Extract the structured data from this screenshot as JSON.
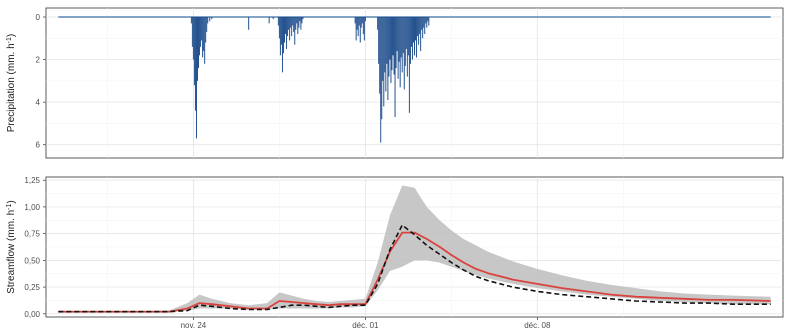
{
  "chart_data": [
    {
      "type": "bar",
      "ylabel": {
        "main": "Precipitation (mm. h",
        "sup": "-1",
        "tail": ")"
      },
      "y_reversed": true,
      "ylim": [
        0,
        6.2
      ],
      "yticks": [
        "0",
        "2",
        "4",
        "6"
      ],
      "x_start": "2023-11-18T00:00",
      "x_end": "2023-12-18T00:00",
      "xticks": [
        {
          "label": "nov. 24",
          "date": "2023-11-24"
        },
        {
          "label": "déc. 01",
          "date": "2023-12-01"
        },
        {
          "label": "déc. 08",
          "date": "2023-12-08"
        }
      ],
      "colors": {
        "bars": "#1f4e8c",
        "baseline": "#5b86b4"
      },
      "bars": [
        {
          "date": "2023-11-23T22:00",
          "value": 0.3
        },
        {
          "date": "2023-11-23T23:00",
          "value": 1.4
        },
        {
          "date": "2023-11-24T00:00",
          "value": 2.0
        },
        {
          "date": "2023-11-24T01:00",
          "value": 3.2
        },
        {
          "date": "2023-11-24T02:00",
          "value": 4.4
        },
        {
          "date": "2023-11-24T03:00",
          "value": 5.7
        },
        {
          "date": "2023-11-24T04:00",
          "value": 3.0
        },
        {
          "date": "2023-11-24T05:00",
          "value": 2.4
        },
        {
          "date": "2023-11-24T06:00",
          "value": 1.8
        },
        {
          "date": "2023-11-24T07:00",
          "value": 1.4
        },
        {
          "date": "2023-11-24T08:00",
          "value": 1.1
        },
        {
          "date": "2023-11-24T09:00",
          "value": 1.9
        },
        {
          "date": "2023-11-24T10:00",
          "value": 1.6
        },
        {
          "date": "2023-11-24T11:00",
          "value": 2.2
        },
        {
          "date": "2023-11-24T12:00",
          "value": 1.2
        },
        {
          "date": "2023-11-24T13:00",
          "value": 0.7
        },
        {
          "date": "2023-11-24T14:00",
          "value": 0.3
        },
        {
          "date": "2023-11-24T16:00",
          "value": 0.2
        },
        {
          "date": "2023-11-24T18:00",
          "value": 0.1
        },
        {
          "date": "2023-11-26T06:00",
          "value": 0.6
        },
        {
          "date": "2023-11-27T02:00",
          "value": 0.3
        },
        {
          "date": "2023-11-27T06:00",
          "value": 0.1
        },
        {
          "date": "2023-11-27T11:00",
          "value": 0.4
        },
        {
          "date": "2023-11-27T12:00",
          "value": 1.0
        },
        {
          "date": "2023-11-27T13:00",
          "value": 1.8
        },
        {
          "date": "2023-11-27T14:00",
          "value": 1.3
        },
        {
          "date": "2023-11-27T15:00",
          "value": 2.6
        },
        {
          "date": "2023-11-27T16:00",
          "value": 1.7
        },
        {
          "date": "2023-11-27T17:00",
          "value": 1.2
        },
        {
          "date": "2023-11-27T18:00",
          "value": 0.8
        },
        {
          "date": "2023-11-27T19:00",
          "value": 1.5
        },
        {
          "date": "2023-11-27T20:00",
          "value": 0.9
        },
        {
          "date": "2023-11-27T21:00",
          "value": 0.6
        },
        {
          "date": "2023-11-27T22:00",
          "value": 1.1
        },
        {
          "date": "2023-11-27T23:00",
          "value": 0.5
        },
        {
          "date": "2023-11-28T00:00",
          "value": 0.9
        },
        {
          "date": "2023-11-28T01:00",
          "value": 0.4
        },
        {
          "date": "2023-11-28T02:00",
          "value": 0.7
        },
        {
          "date": "2023-11-28T03:00",
          "value": 1.3
        },
        {
          "date": "2023-11-28T04:00",
          "value": 0.6
        },
        {
          "date": "2023-11-28T05:00",
          "value": 0.3
        },
        {
          "date": "2023-11-28T06:00",
          "value": 0.8
        },
        {
          "date": "2023-11-28T07:00",
          "value": 0.5
        },
        {
          "date": "2023-11-28T08:00",
          "value": 0.2
        },
        {
          "date": "2023-11-28T09:00",
          "value": 0.6
        },
        {
          "date": "2023-11-28T10:00",
          "value": 0.3
        },
        {
          "date": "2023-11-28T11:00",
          "value": 0.1
        },
        {
          "date": "2023-11-30T14:00",
          "value": 0.3
        },
        {
          "date": "2023-11-30T15:00",
          "value": 1.1
        },
        {
          "date": "2023-11-30T16:00",
          "value": 0.6
        },
        {
          "date": "2023-11-30T17:00",
          "value": 0.9
        },
        {
          "date": "2023-11-30T18:00",
          "value": 0.4
        },
        {
          "date": "2023-11-30T19:00",
          "value": 1.2
        },
        {
          "date": "2023-11-30T20:00",
          "value": 0.5
        },
        {
          "date": "2023-11-30T21:00",
          "value": 0.3
        },
        {
          "date": "2023-11-30T22:00",
          "value": 0.8
        },
        {
          "date": "2023-11-30T23:00",
          "value": 1.1
        },
        {
          "date": "2023-12-01T00:00",
          "value": 0.2
        },
        {
          "date": "2023-12-01T12:00",
          "value": 0.6
        },
        {
          "date": "2023-12-01T13:00",
          "value": 2.2
        },
        {
          "date": "2023-12-01T14:00",
          "value": 3.6
        },
        {
          "date": "2023-12-01T15:00",
          "value": 5.9
        },
        {
          "date": "2023-12-01T16:00",
          "value": 4.8
        },
        {
          "date": "2023-12-01T17:00",
          "value": 3.0
        },
        {
          "date": "2023-12-01T18:00",
          "value": 4.2
        },
        {
          "date": "2023-12-01T19:00",
          "value": 2.6
        },
        {
          "date": "2023-12-01T20:00",
          "value": 3.5
        },
        {
          "date": "2023-12-01T21:00",
          "value": 2.2
        },
        {
          "date": "2023-12-01T22:00",
          "value": 3.9
        },
        {
          "date": "2023-12-01T23:00",
          "value": 2.8
        },
        {
          "date": "2023-12-02T00:00",
          "value": 2.0
        },
        {
          "date": "2023-12-02T01:00",
          "value": 3.1
        },
        {
          "date": "2023-12-02T02:00",
          "value": 2.5
        },
        {
          "date": "2023-12-02T03:00",
          "value": 1.8
        },
        {
          "date": "2023-12-02T04:00",
          "value": 2.7
        },
        {
          "date": "2023-12-02T05:00",
          "value": 4.7
        },
        {
          "date": "2023-12-02T06:00",
          "value": 2.4
        },
        {
          "date": "2023-12-02T07:00",
          "value": 1.6
        },
        {
          "date": "2023-12-02T08:00",
          "value": 2.9
        },
        {
          "date": "2023-12-02T09:00",
          "value": 2.1
        },
        {
          "date": "2023-12-02T10:00",
          "value": 3.3
        },
        {
          "date": "2023-12-02T11:00",
          "value": 1.9
        },
        {
          "date": "2023-12-02T12:00",
          "value": 2.6
        },
        {
          "date": "2023-12-02T13:00",
          "value": 1.7
        },
        {
          "date": "2023-12-02T14:00",
          "value": 3.4
        },
        {
          "date": "2023-12-02T15:00",
          "value": 2.3
        },
        {
          "date": "2023-12-02T16:00",
          "value": 1.5
        },
        {
          "date": "2023-12-02T17:00",
          "value": 2.8
        },
        {
          "date": "2023-12-02T18:00",
          "value": 1.8
        },
        {
          "date": "2023-12-02T19:00",
          "value": 4.5
        },
        {
          "date": "2023-12-02T20:00",
          "value": 2.2
        },
        {
          "date": "2023-12-02T21:00",
          "value": 1.4
        },
        {
          "date": "2023-12-02T22:00",
          "value": 2.0
        },
        {
          "date": "2023-12-02T23:00",
          "value": 1.2
        },
        {
          "date": "2023-12-03T00:00",
          "value": 1.8
        },
        {
          "date": "2023-12-03T01:00",
          "value": 1.1
        },
        {
          "date": "2023-12-03T02:00",
          "value": 1.9
        },
        {
          "date": "2023-12-03T03:00",
          "value": 0.9
        },
        {
          "date": "2023-12-03T04:00",
          "value": 1.3
        },
        {
          "date": "2023-12-03T05:00",
          "value": 0.8
        },
        {
          "date": "2023-12-03T06:00",
          "value": 1.6
        },
        {
          "date": "2023-12-03T07:00",
          "value": 0.6
        },
        {
          "date": "2023-12-03T08:00",
          "value": 1.0
        },
        {
          "date": "2023-12-03T09:00",
          "value": 0.5
        },
        {
          "date": "2023-12-03T10:00",
          "value": 0.8
        },
        {
          "date": "2023-12-03T11:00",
          "value": 0.3
        },
        {
          "date": "2023-12-03T12:00",
          "value": 0.5
        },
        {
          "date": "2023-12-03T13:00",
          "value": 0.2
        },
        {
          "date": "2023-12-03T14:00",
          "value": 0.4
        }
      ]
    },
    {
      "type": "line",
      "ylabel": {
        "main": "Streamflow (mm. h",
        "sup": "-1",
        "tail": ")"
      },
      "ylim": [
        -0.03,
        1.28
      ],
      "yticks": [
        "0,00",
        "0,25",
        "0,50",
        "0,75",
        "1,00",
        "1,25"
      ],
      "x_start": "2023-11-18T00:00",
      "x_end": "2023-12-18T00:00",
      "xticks": [
        {
          "label": "nov. 24",
          "date": "2023-11-24"
        },
        {
          "label": "déc. 01",
          "date": "2023-12-01"
        },
        {
          "label": "déc. 08",
          "date": "2023-12-08"
        }
      ],
      "colors": {
        "band": "#bdbdbd",
        "simulated": "#d9433e",
        "observed": "#111111"
      },
      "x": [
        "2023-11-18T12:00",
        "2023-11-21T00:00",
        "2023-11-23T00:00",
        "2023-11-23T18:00",
        "2023-11-24T06:00",
        "2023-11-24T18:00",
        "2023-11-25T12:00",
        "2023-11-26T06:00",
        "2023-11-27T00:00",
        "2023-11-27T12:00",
        "2023-11-28T00:00",
        "2023-11-28T12:00",
        "2023-11-29T00:00",
        "2023-11-29T12:00",
        "2023-11-30T00:00",
        "2023-11-30T12:00",
        "2023-12-01T00:00",
        "2023-12-01T12:00",
        "2023-12-02T00:00",
        "2023-12-02T12:00",
        "2023-12-03T00:00",
        "2023-12-03T12:00",
        "2023-12-04T00:00",
        "2023-12-04T12:00",
        "2023-12-05T00:00",
        "2023-12-05T12:00",
        "2023-12-06T00:00",
        "2023-12-07T00:00",
        "2023-12-08T00:00",
        "2023-12-09T00:00",
        "2023-12-10T00:00",
        "2023-12-11T00:00",
        "2023-12-12T00:00",
        "2023-12-13T00:00",
        "2023-12-14T00:00",
        "2023-12-15T00:00",
        "2023-12-16T00:00",
        "2023-12-17T12:00"
      ],
      "band_lower": [
        0.02,
        0.02,
        0.02,
        0.03,
        0.05,
        0.05,
        0.05,
        0.04,
        0.04,
        0.05,
        0.05,
        0.05,
        0.05,
        0.05,
        0.06,
        0.06,
        0.07,
        0.22,
        0.4,
        0.44,
        0.5,
        0.5,
        0.48,
        0.44,
        0.4,
        0.36,
        0.33,
        0.28,
        0.24,
        0.21,
        0.18,
        0.16,
        0.14,
        0.12,
        0.11,
        0.1,
        0.09,
        0.09
      ],
      "band_upper": [
        0.02,
        0.02,
        0.03,
        0.1,
        0.18,
        0.14,
        0.1,
        0.08,
        0.1,
        0.2,
        0.17,
        0.14,
        0.12,
        0.11,
        0.12,
        0.13,
        0.14,
        0.48,
        0.92,
        1.2,
        1.18,
        1.0,
        0.88,
        0.78,
        0.7,
        0.64,
        0.58,
        0.49,
        0.42,
        0.36,
        0.31,
        0.27,
        0.24,
        0.21,
        0.19,
        0.18,
        0.17,
        0.16
      ],
      "series": [
        {
          "values": [
            0.02,
            0.02,
            0.02,
            0.05,
            0.1,
            0.09,
            0.07,
            0.05,
            0.05,
            0.12,
            0.11,
            0.1,
            0.09,
            0.08,
            0.09,
            0.09,
            0.09,
            0.32,
            0.58,
            0.76,
            0.76,
            0.7,
            0.63,
            0.55,
            0.48,
            0.42,
            0.38,
            0.32,
            0.28,
            0.24,
            0.21,
            0.18,
            0.16,
            0.15,
            0.14,
            0.13,
            0.13,
            0.12
          ]
        },
        {
          "values": [
            0.02,
            0.02,
            0.02,
            0.03,
            0.08,
            0.07,
            0.05,
            0.04,
            0.04,
            0.06,
            0.08,
            0.08,
            0.07,
            0.06,
            0.07,
            0.08,
            0.08,
            0.28,
            0.6,
            0.83,
            0.74,
            0.64,
            0.56,
            0.48,
            0.41,
            0.35,
            0.31,
            0.25,
            0.21,
            0.18,
            0.16,
            0.14,
            0.12,
            0.11,
            0.1,
            0.1,
            0.09,
            0.09
          ]
        }
      ]
    }
  ]
}
